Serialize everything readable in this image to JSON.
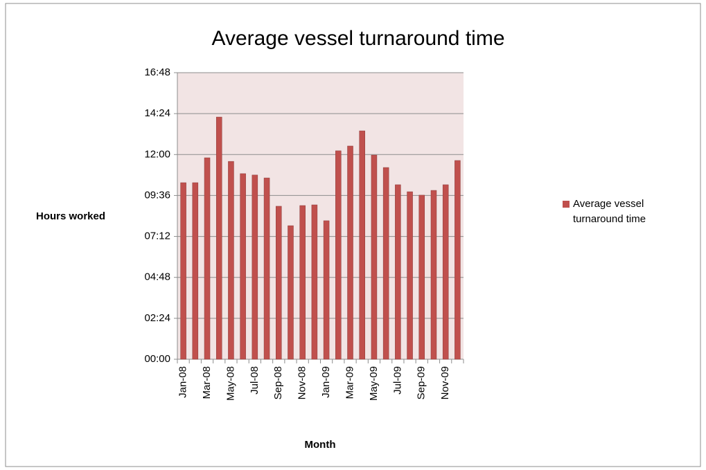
{
  "chart_data": {
    "type": "bar",
    "title": "Average vessel turnaround time",
    "x_label": "Month",
    "y_label": "Hours worked",
    "categories": [
      "Jan-08",
      null,
      "Mar-08",
      null,
      "May-08",
      null,
      "Jul-08",
      null,
      "Sep-08",
      null,
      "Nov-08",
      null,
      "Jan-09",
      null,
      "Mar-09",
      null,
      "May-09",
      null,
      "Jul-09",
      null,
      "Sep-09",
      null,
      "Nov-09",
      null
    ],
    "series": [
      {
        "name": "Average vessel turnaround time",
        "color": "#c0504d",
        "values": [
          10.35,
          10.35,
          11.81,
          14.2,
          11.6,
          10.88,
          10.8,
          10.63,
          8.97,
          7.83,
          9.01,
          9.05,
          8.12,
          12.22,
          12.5,
          13.39,
          11.97,
          11.24,
          10.23,
          9.82,
          9.62,
          9.9,
          10.23,
          11.65
        ]
      }
    ],
    "ylim": [
      0,
      16.8
    ],
    "yticks": [
      {
        "value": 0,
        "label": "00:00"
      },
      {
        "value": 2.4,
        "label": "02:24"
      },
      {
        "value": 4.8,
        "label": "04:48"
      },
      {
        "value": 7.2,
        "label": "07:12"
      },
      {
        "value": 9.6,
        "label": "09:36"
      },
      {
        "value": 12,
        "label": "12:00"
      },
      {
        "value": 14.4,
        "label": "14:24"
      },
      {
        "value": 16.8,
        "label": "16:48"
      }
    ],
    "grid": true,
    "legend": "right"
  }
}
